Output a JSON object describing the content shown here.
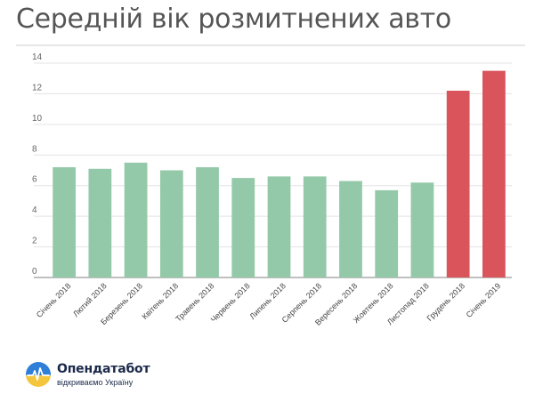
{
  "title": "Середній вік розмитнених авто",
  "chart_data": {
    "type": "bar",
    "categories": [
      "Січень 2018",
      "Лютий 2018",
      "Березень 2018",
      "Квітень 2018",
      "Травень 2018",
      "Червень 2018",
      "Липень 2018",
      "Серпень 2018",
      "Вересень 2018",
      "Жовтень 2018",
      "Листопад 2018",
      "Грудень 2018",
      "Січень 2019"
    ],
    "values": [
      7.2,
      7.1,
      7.5,
      7.0,
      7.2,
      6.5,
      6.6,
      6.6,
      6.3,
      5.7,
      6.2,
      12.2,
      13.5
    ],
    "bar_colors": [
      "#93c9a8",
      "#93c9a8",
      "#93c9a8",
      "#93c9a8",
      "#93c9a8",
      "#93c9a8",
      "#93c9a8",
      "#93c9a8",
      "#93c9a8",
      "#93c9a8",
      "#93c9a8",
      "#d9545b",
      "#d9545b"
    ],
    "yticks": [
      0,
      2,
      4,
      6,
      8,
      10,
      12,
      14
    ],
    "ylim": [
      0,
      14
    ],
    "grid": true,
    "xlabel": "",
    "ylabel": ""
  },
  "logo": {
    "name": "Опендатабот",
    "tagline": "відкриваємо Україну",
    "colors": {
      "blue": "#2f7fd8",
      "yellow": "#f4c63d",
      "line": "#ffffff"
    }
  }
}
